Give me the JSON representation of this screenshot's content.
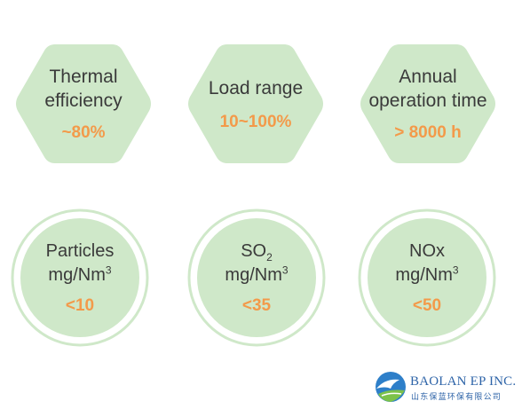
{
  "hexagons": [
    {
      "label_lines": [
        "Thermal",
        "efficiency"
      ],
      "value": "~80%"
    },
    {
      "label_lines": [
        "Load range"
      ],
      "value": "10~100%"
    },
    {
      "label_lines": [
        "Annual",
        "operation time"
      ],
      "value": "> 8000 h"
    }
  ],
  "circles": [
    {
      "line1": "Particles",
      "line2": "mg/Nm",
      "sup": "3",
      "value": "<10"
    },
    {
      "line1": "SO",
      "sub": "2",
      "line2": "mg/Nm",
      "sup": "3",
      "value": "<35"
    },
    {
      "line1": "NOx",
      "line2": "mg/Nm",
      "sup": "3",
      "value": "<50"
    }
  ],
  "logo": {
    "name": "BAOLAN EP INC.",
    "chinese": "山东保蓝环保有限公司"
  },
  "colors": {
    "shape_fill": "#cfe8c9",
    "value": "#f39a4a",
    "text": "#3a3a3a",
    "ring": "#cfe8c9",
    "brand": "#2e64a8"
  }
}
